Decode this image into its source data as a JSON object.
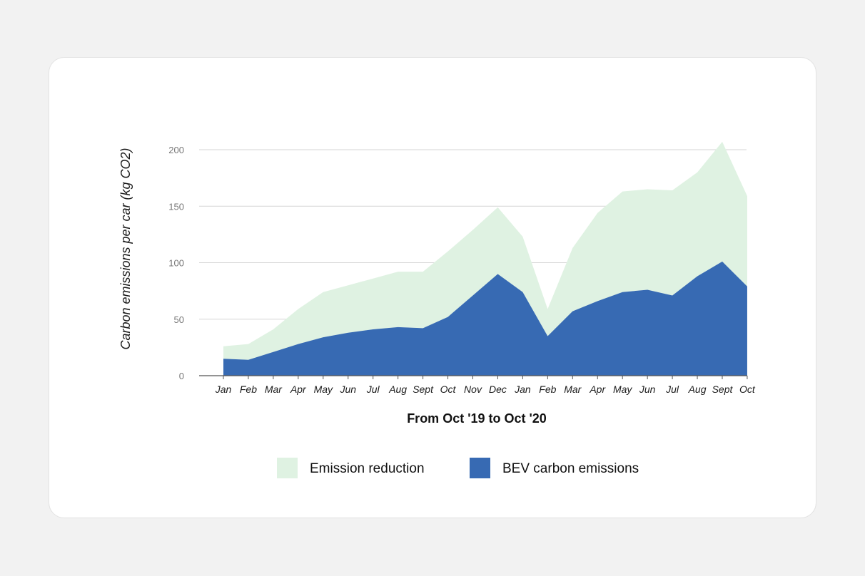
{
  "chart_data": {
    "type": "area",
    "stacked": true,
    "title": "",
    "xlabel": "From Oct '19 to Oct '20",
    "ylabel": "Carbon emissions per car (kg CO2)",
    "ylim": [
      0,
      200
    ],
    "yticks": [
      0,
      50,
      100,
      150,
      200
    ],
    "grid": true,
    "categories": [
      "Jan",
      "Feb",
      "Mar",
      "Apr",
      "May",
      "Jun",
      "Jul",
      "Aug",
      "Sept",
      "Oct",
      "Nov",
      "Dec",
      "Jan",
      "Feb",
      "Mar",
      "Apr",
      "May",
      "Jun",
      "Jul",
      "Aug",
      "Sept",
      "Oct"
    ],
    "series": [
      {
        "name": "BEV carbon emissions",
        "color": "#376ab3",
        "values": [
          15,
          14,
          21,
          28,
          34,
          38,
          41,
          43,
          42,
          52,
          71,
          90,
          74,
          35,
          57,
          66,
          74,
          76,
          71,
          88,
          101,
          79
        ]
      },
      {
        "name": "Emission reduction",
        "color": "#dff2e2",
        "values": [
          11,
          14,
          20,
          31,
          40,
          42,
          45,
          49,
          50,
          58,
          58,
          59,
          49,
          24,
          56,
          78,
          89,
          89,
          93,
          92,
          106,
          80
        ]
      }
    ],
    "legend": {
      "position": "bottom",
      "entries": [
        "Emission reduction",
        "BEV carbon emissions"
      ]
    }
  },
  "colors": {
    "grid": "#d6d6d6",
    "axis": "#555555"
  }
}
